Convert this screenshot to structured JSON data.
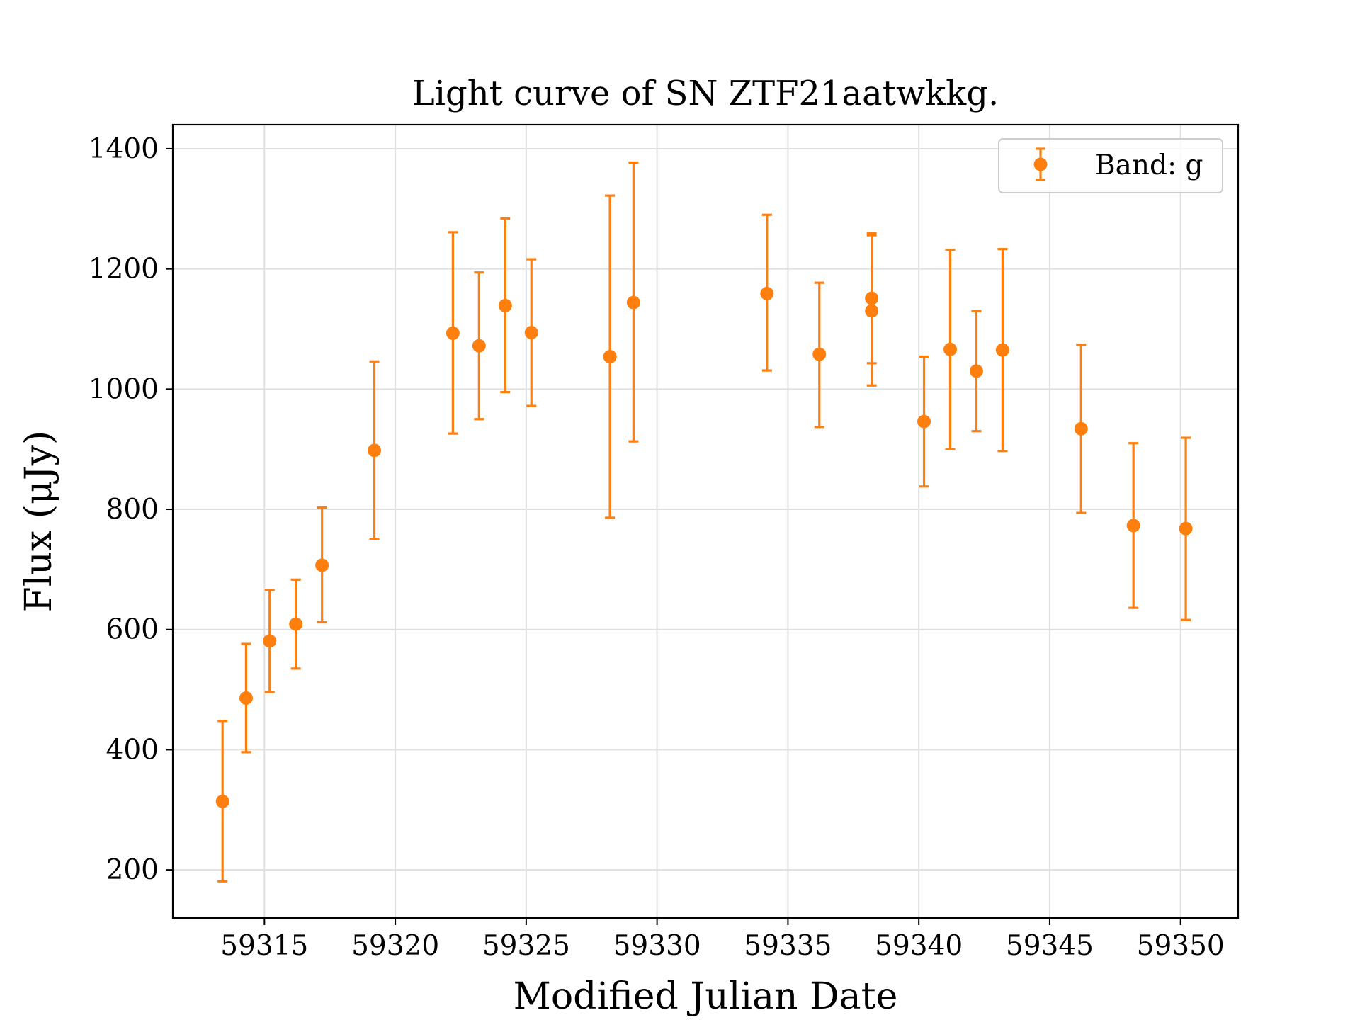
{
  "chart_data": {
    "type": "scatter",
    "title": "Light curve of SN ZTF21aatwkkg.",
    "xlabel": "Modified Julian Date",
    "ylabel": "Flux (μJy)",
    "xlim": [
      59311.5,
      59352.2
    ],
    "ylim": [
      120,
      1440
    ],
    "xticks": [
      59315,
      59320,
      59325,
      59330,
      59335,
      59340,
      59345,
      59350
    ],
    "yticks": [
      200,
      400,
      600,
      800,
      1000,
      1200,
      1400
    ],
    "grid": true,
    "legend": {
      "position": "top-right",
      "entries": [
        "Band: g"
      ]
    },
    "colors": {
      "series": "#ff7f0e",
      "grid": "#e0e0e0",
      "axes": "#000000"
    },
    "series": [
      {
        "name": "Band: g",
        "color": "#ff7f0e",
        "points": [
          {
            "x": 59313.4,
            "y": 314,
            "yerr_low": 181,
            "yerr_high": 448
          },
          {
            "x": 59314.3,
            "y": 486,
            "yerr_low": 396,
            "yerr_high": 576
          },
          {
            "x": 59315.2,
            "y": 581,
            "yerr_low": 496,
            "yerr_high": 666
          },
          {
            "x": 59316.2,
            "y": 609,
            "yerr_low": 535,
            "yerr_high": 683
          },
          {
            "x": 59317.2,
            "y": 707,
            "yerr_low": 612,
            "yerr_high": 803
          },
          {
            "x": 59319.2,
            "y": 898,
            "yerr_low": 751,
            "yerr_high": 1046
          },
          {
            "x": 59322.2,
            "y": 1093,
            "yerr_low": 926,
            "yerr_high": 1261
          },
          {
            "x": 59323.2,
            "y": 1072,
            "yerr_low": 950,
            "yerr_high": 1194
          },
          {
            "x": 59324.2,
            "y": 1139,
            "yerr_low": 995,
            "yerr_high": 1284
          },
          {
            "x": 59325.2,
            "y": 1094,
            "yerr_low": 972,
            "yerr_high": 1216
          },
          {
            "x": 59328.2,
            "y": 1054,
            "yerr_low": 786,
            "yerr_high": 1322
          },
          {
            "x": 59329.1,
            "y": 1144,
            "yerr_low": 913,
            "yerr_high": 1377
          },
          {
            "x": 59334.2,
            "y": 1159,
            "yerr_low": 1031,
            "yerr_high": 1290
          },
          {
            "x": 59336.2,
            "y": 1058,
            "yerr_low": 937,
            "yerr_high": 1177
          },
          {
            "x": 59338.2,
            "y": 1151,
            "yerr_low": 1043,
            "yerr_high": 1259
          },
          {
            "x": 59338.2,
            "y": 1130,
            "yerr_low": 1006,
            "yerr_high": 1256
          },
          {
            "x": 59340.2,
            "y": 946,
            "yerr_low": 838,
            "yerr_high": 1054
          },
          {
            "x": 59341.2,
            "y": 1066,
            "yerr_low": 900,
            "yerr_high": 1232
          },
          {
            "x": 59342.2,
            "y": 1030,
            "yerr_low": 930,
            "yerr_high": 1130
          },
          {
            "x": 59343.2,
            "y": 1065,
            "yerr_low": 897,
            "yerr_high": 1233
          },
          {
            "x": 59346.2,
            "y": 934,
            "yerr_low": 794,
            "yerr_high": 1074
          },
          {
            "x": 59348.2,
            "y": 773,
            "yerr_low": 636,
            "yerr_high": 910
          },
          {
            "x": 59350.2,
            "y": 768,
            "yerr_low": 616,
            "yerr_high": 919
          }
        ]
      }
    ]
  }
}
